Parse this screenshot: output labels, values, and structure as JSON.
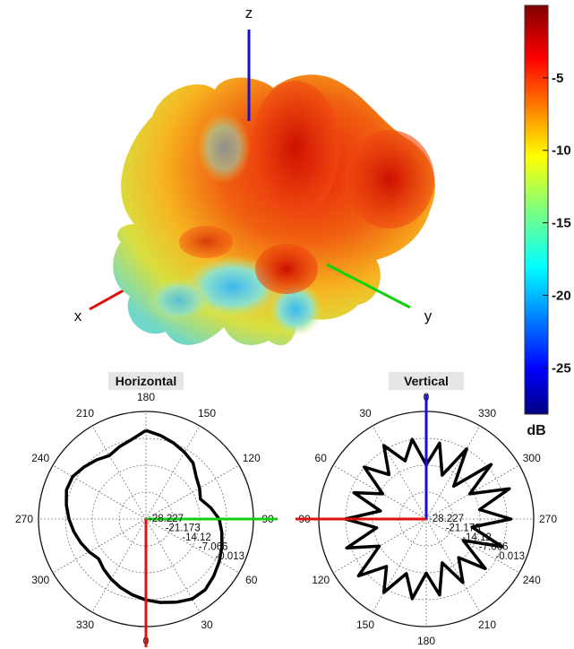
{
  "chart_data": [
    {
      "type": "surface",
      "axes": {
        "x": "x",
        "y": "y",
        "z": "z"
      },
      "colorbar": {
        "unit": "dB",
        "ticks": [
          "-5",
          "-10",
          "-15",
          "-20",
          "-25"
        ],
        "tick_values": [
          -5,
          -10,
          -15,
          -20,
          -25
        ],
        "range": [
          -28.2,
          0
        ],
        "colormap": "jet"
      }
    },
    {
      "type": "polar",
      "title": "Horizontal",
      "angle_labels": [
        "180",
        "150",
        "120",
        "90",
        "60",
        "30",
        "0",
        "330",
        "300",
        "270",
        "240",
        "210"
      ],
      "radial_labels": [
        "-28.227",
        "-21.173",
        "-14.12",
        "-7.066",
        "-0.013"
      ],
      "radial_range": [
        -28.227,
        -0.013
      ],
      "series": [
        {
          "values": [
            -5,
            -6,
            -7,
            -8,
            -9,
            -11,
            -12,
            -13,
            -11,
            -9,
            -8,
            -7,
            -6,
            -5,
            -4,
            -4,
            -5,
            -6,
            -7,
            -8,
            -9,
            -10,
            -11,
            -12,
            -11,
            -10,
            -9,
            -8,
            -7,
            -6,
            -6,
            -7,
            -8,
            -9,
            -8,
            -7
          ]
        }
      ]
    },
    {
      "type": "polar",
      "title": "Vertical",
      "angle_labels": [
        "0",
        "330",
        "300",
        "270",
        "240",
        "210",
        "180",
        "150",
        "120",
        "90",
        "60",
        "30"
      ],
      "radial_labels": [
        "-28.227",
        "-21.173",
        "-14.12",
        "-7.066",
        "-0.013"
      ],
      "radial_range": [
        -28.227,
        -0.013
      ],
      "series": [
        {
          "values": [
            -14,
            -8,
            -16,
            -7,
            -17,
            -6,
            -15,
            -5,
            -14,
            -6,
            -16,
            -7,
            -17,
            -8,
            -15,
            -9,
            -16,
            -8,
            -14,
            -7,
            -13,
            -6,
            -12,
            -5,
            -14,
            -6,
            -15,
            -7,
            -16,
            -8,
            -15,
            -7,
            -13,
            -6,
            -12,
            -7
          ]
        }
      ]
    }
  ]
}
